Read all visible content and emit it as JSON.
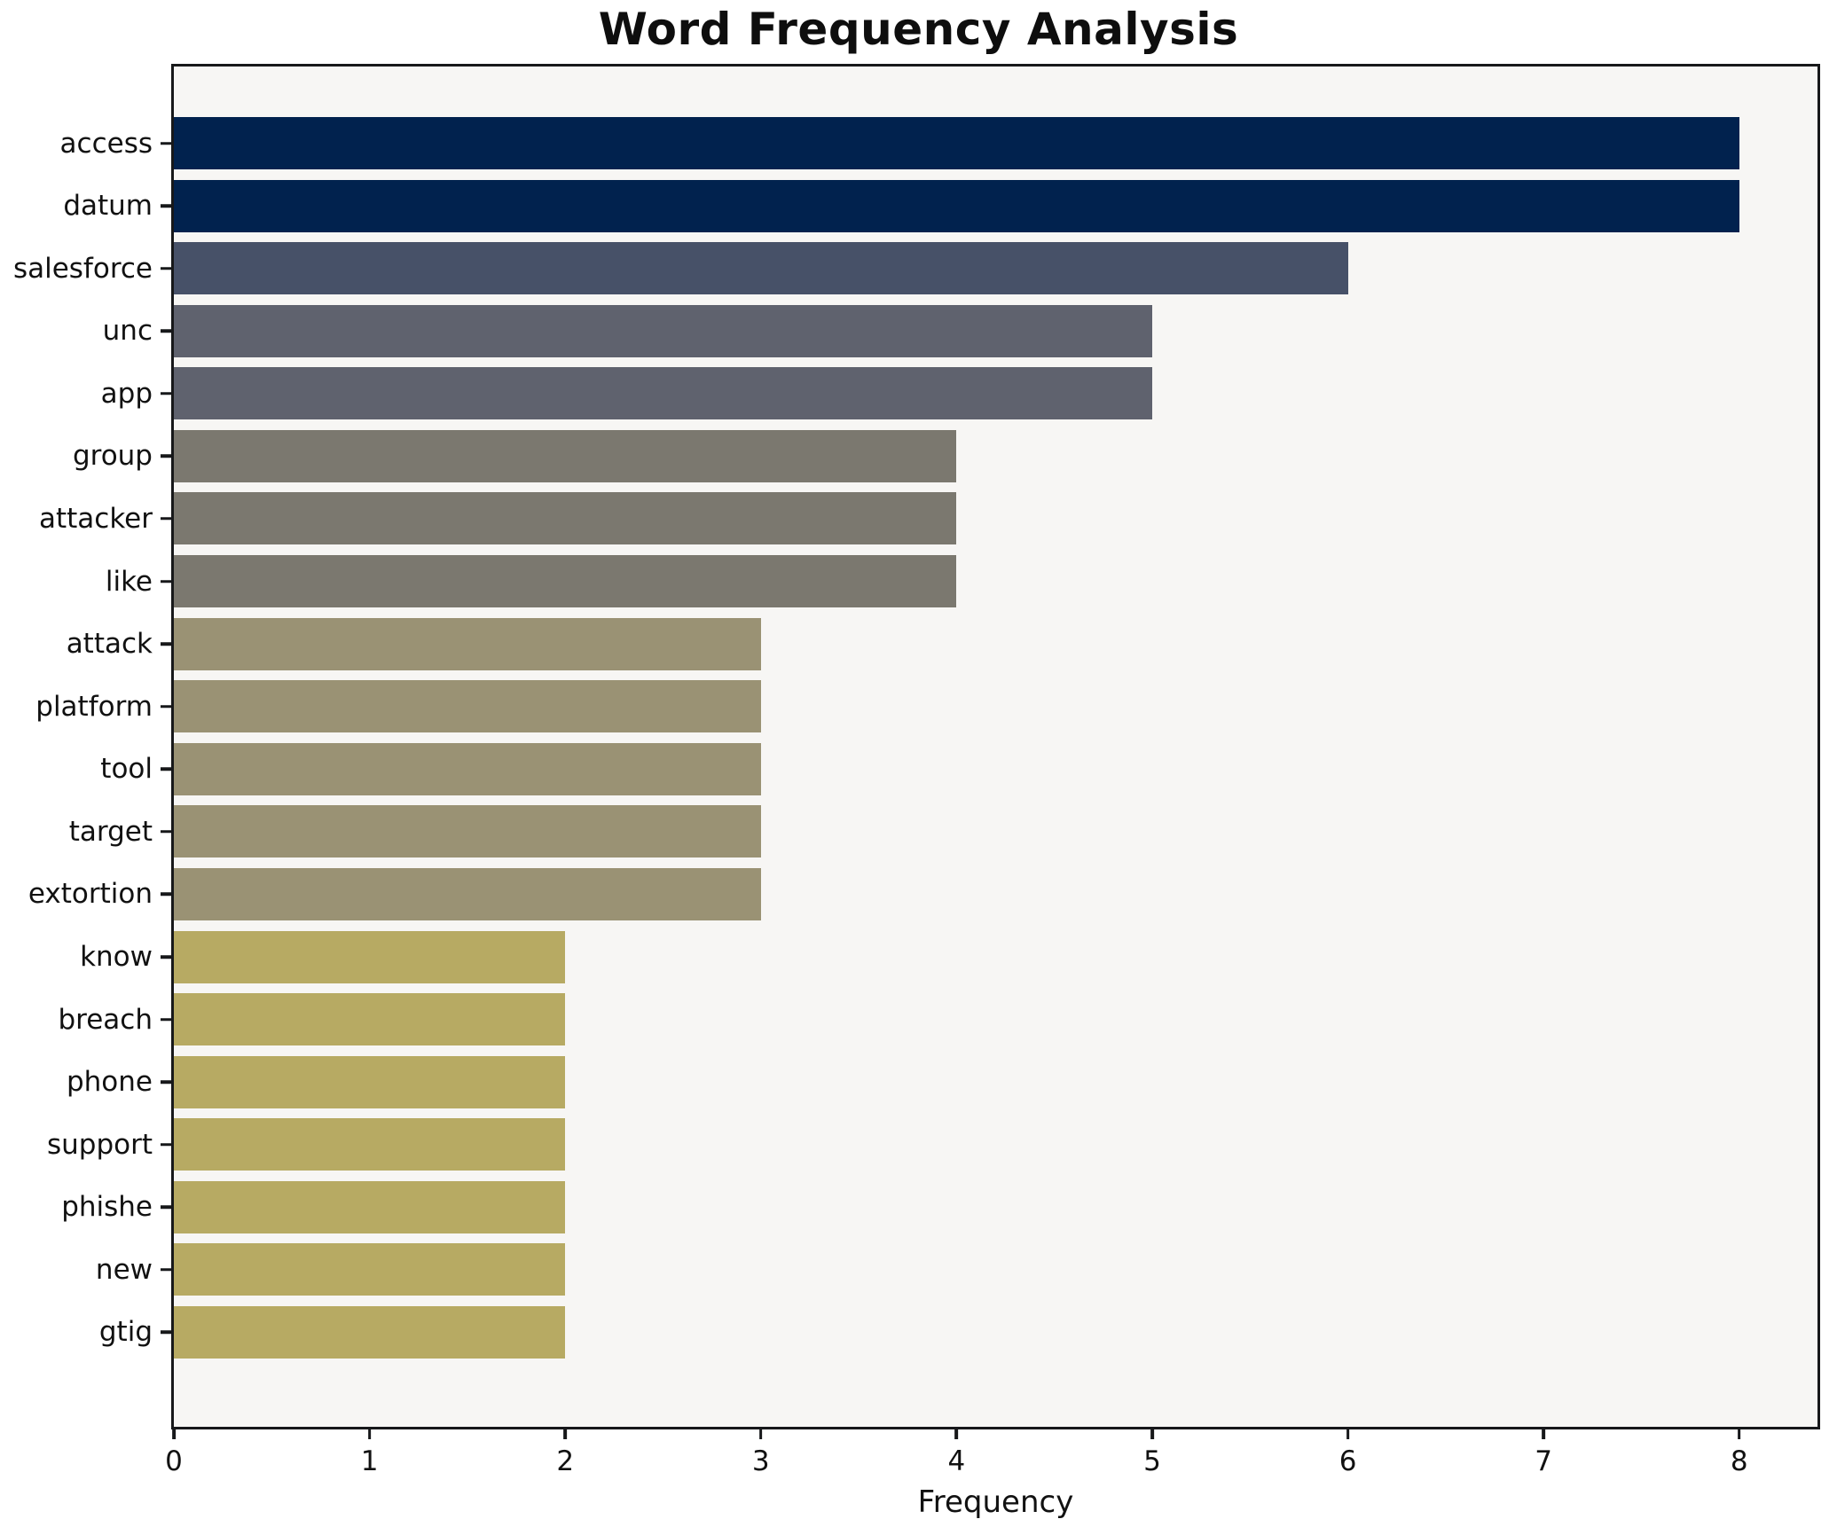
{
  "chart_data": {
    "type": "bar",
    "orientation": "horizontal",
    "title": "Word Frequency Analysis",
    "xlabel": "Frequency",
    "ylabel": "",
    "xlim": [
      0,
      8.4
    ],
    "xticks": [
      0,
      1,
      2,
      3,
      4,
      5,
      6,
      7,
      8
    ],
    "grid": false,
    "legend": "none",
    "plot_background": "#f7f6f4",
    "spine_color": "#17181a",
    "categories": [
      "access",
      "datum",
      "salesforce",
      "unc",
      "app",
      "group",
      "attacker",
      "like",
      "attack",
      "platform",
      "tool",
      "target",
      "extortion",
      "know",
      "breach",
      "phone",
      "support",
      "phishe",
      "new",
      "gtig"
    ],
    "values": [
      8,
      8,
      6,
      5,
      5,
      4,
      4,
      4,
      3,
      3,
      3,
      3,
      3,
      2,
      2,
      2,
      2,
      2,
      2,
      2
    ],
    "bar_colors": [
      "#01224e",
      "#01224e",
      "#475168",
      "#5f626e",
      "#5f626e",
      "#7b786f",
      "#7b786f",
      "#7b786f",
      "#9a9274",
      "#9a9274",
      "#9a9274",
      "#9a9274",
      "#9a9274",
      "#b7aa63",
      "#b7aa63",
      "#b7aa63",
      "#b7aa63",
      "#b7aa63",
      "#b7aa63",
      "#b7aa63"
    ]
  }
}
